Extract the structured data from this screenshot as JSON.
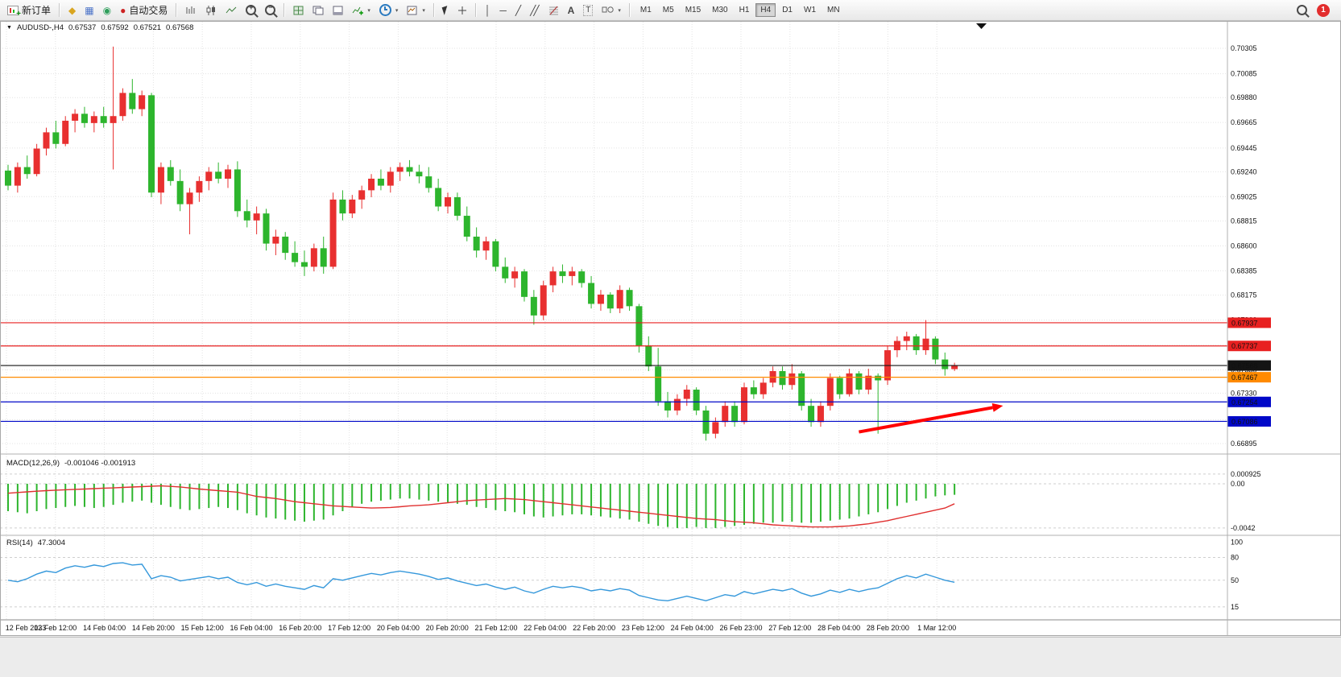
{
  "app": {
    "badge": "1"
  },
  "toolbar": {
    "new_order": "新订单",
    "autotrading": "自动交易",
    "timeframes": [
      "M1",
      "M5",
      "M15",
      "M30",
      "H1",
      "H4",
      "D1",
      "W1",
      "MN"
    ],
    "active_timeframe": "H4",
    "icons": [
      "new-order-icon",
      "symbols-icon",
      "market-watch-icon",
      "navigator-icon",
      "autotrading-icon",
      "bar-chart-icon",
      "candlestick-chart-icon",
      "line-chart-icon",
      "zoom-in-icon",
      "zoom-out-icon",
      "tile-windows-icon",
      "cascade-windows-icon",
      "arrange-windows-icon",
      "indicators-icon",
      "periods-icon",
      "templates-icon",
      "cursor-icon",
      "crosshair-icon",
      "vertical-line-icon",
      "horizontal-line-icon",
      "trendline-icon",
      "channel-icon",
      "fibonacci-icon",
      "text-icon",
      "label-icon",
      "shapes-icon",
      "search-icon",
      "notification-badge"
    ]
  },
  "chart": {
    "symbol_period": "AUDUSD-,H4",
    "open": "0.67537",
    "high": "0.67592",
    "low": "0.67521",
    "close": "0.67568",
    "macd_title": "MACD(12,26,9)",
    "macd_values": "-0.001046 -0.001913",
    "rsi_title": "RSI(14)",
    "rsi_value": "47.3004"
  },
  "chart_data": [
    {
      "type": "candlestick",
      "title": "AUDUSD-,H4",
      "note": "Chinese color convention: red bodies = bullish (up), green bodies = bearish (down)",
      "up_color": "#e83030",
      "down_color": "#2db52d",
      "ylim": [
        0.6686,
        0.7043
      ],
      "y_grid_labels": [
        "0.70305",
        "0.70085",
        "0.69880",
        "0.69665",
        "0.69445",
        "0.69240",
        "0.69025",
        "0.68815",
        "0.68600",
        "0.68385",
        "0.68175",
        "0.67960",
        "0.67745",
        "0.67530",
        "0.67330",
        "0.67100",
        "0.66895"
      ],
      "x_labels": [
        "12 Feb 2023",
        "13 Feb 12:00",
        "14 Feb 04:00",
        "14 Feb 20:00",
        "15 Feb 12:00",
        "16 Feb 04:00",
        "16 Feb 20:00",
        "17 Feb 12:00",
        "20 Feb 04:00",
        "20 Feb 20:00",
        "21 Feb 12:00",
        "22 Feb 04:00",
        "22 Feb 20:00",
        "23 Feb 12:00",
        "24 Feb 04:00",
        "26 Feb 23:00",
        "27 Feb 12:00",
        "28 Feb 04:00",
        "28 Feb 20:00",
        "1 Mar 12:00"
      ],
      "levels": [
        {
          "price": 0.67937,
          "label": "0.67937",
          "color": "#e82020",
          "style": "resistance"
        },
        {
          "price": 0.67737,
          "label": "0.67737",
          "color": "#e82020",
          "style": "resistance"
        },
        {
          "price": 0.67568,
          "label": "0.67568",
          "color": "#141414",
          "style": "current-price",
          "current_price": true
        },
        {
          "price": 0.67467,
          "label": "0.67467",
          "color": "#ff8a00",
          "style": "level"
        },
        {
          "price": 0.67254,
          "label": "0.67254",
          "color": "#0008c8",
          "style": "support"
        },
        {
          "price": 0.67086,
          "label": "0.67086",
          "color": "#0008c8",
          "style": "support"
        }
      ],
      "arrow_annotation": {
        "from_index": 89,
        "from_price": 0.66995,
        "to_index": 103,
        "to_price": 0.67205,
        "color": "#ff0000"
      },
      "candles_ohlc": [
        [
          0.6925,
          0.693,
          0.6908,
          0.6912
        ],
        [
          0.6912,
          0.6932,
          0.6906,
          0.6928
        ],
        [
          0.6928,
          0.6938,
          0.6918,
          0.6922
        ],
        [
          0.6922,
          0.6948,
          0.692,
          0.6944
        ],
        [
          0.6944,
          0.6962,
          0.6938,
          0.6958
        ],
        [
          0.6958,
          0.6968,
          0.6944,
          0.6948
        ],
        [
          0.6948,
          0.6972,
          0.6946,
          0.6968
        ],
        [
          0.6968,
          0.6978,
          0.6958,
          0.6974
        ],
        [
          0.6974,
          0.698,
          0.6962,
          0.6966
        ],
        [
          0.6966,
          0.6976,
          0.6958,
          0.6972
        ],
        [
          0.6972,
          0.698,
          0.6962,
          0.6966
        ],
        [
          0.6966,
          0.7032,
          0.6926,
          0.6972
        ],
        [
          0.6972,
          0.6996,
          0.6968,
          0.6992
        ],
        [
          0.6992,
          0.7004,
          0.6974,
          0.6978
        ],
        [
          0.6978,
          0.6994,
          0.6972,
          0.699
        ],
        [
          0.699,
          0.6992,
          0.6902,
          0.6906
        ],
        [
          0.6906,
          0.6932,
          0.6896,
          0.6928
        ],
        [
          0.6928,
          0.6934,
          0.6912,
          0.6916
        ],
        [
          0.6916,
          0.6926,
          0.689,
          0.6896
        ],
        [
          0.6896,
          0.691,
          0.687,
          0.6906
        ],
        [
          0.6906,
          0.692,
          0.6898,
          0.6916
        ],
        [
          0.6916,
          0.6928,
          0.6908,
          0.6924
        ],
        [
          0.6924,
          0.6932,
          0.6914,
          0.6918
        ],
        [
          0.6918,
          0.693,
          0.691,
          0.6926
        ],
        [
          0.6926,
          0.6933,
          0.6885,
          0.689
        ],
        [
          0.689,
          0.69,
          0.6876,
          0.6882
        ],
        [
          0.6882,
          0.6894,
          0.687,
          0.6888
        ],
        [
          0.6888,
          0.6892,
          0.6856,
          0.6862
        ],
        [
          0.6862,
          0.6874,
          0.6852,
          0.6868
        ],
        [
          0.6868,
          0.6872,
          0.6848,
          0.6854
        ],
        [
          0.6854,
          0.6864,
          0.6842,
          0.6846
        ],
        [
          0.6846,
          0.6856,
          0.6834,
          0.6842
        ],
        [
          0.6842,
          0.6862,
          0.6838,
          0.6858
        ],
        [
          0.6858,
          0.6868,
          0.6836,
          0.6842
        ],
        [
          0.6842,
          0.6906,
          0.684,
          0.69
        ],
        [
          0.69,
          0.6908,
          0.6882,
          0.6888
        ],
        [
          0.6888,
          0.6904,
          0.6884,
          0.69
        ],
        [
          0.69,
          0.6912,
          0.6892,
          0.6908
        ],
        [
          0.6908,
          0.6922,
          0.6902,
          0.6918
        ],
        [
          0.6918,
          0.6926,
          0.6908,
          0.6912
        ],
        [
          0.6912,
          0.6928,
          0.6906,
          0.6924
        ],
        [
          0.6924,
          0.6932,
          0.6916,
          0.6928
        ],
        [
          0.6928,
          0.6934,
          0.692,
          0.6924
        ],
        [
          0.6924,
          0.693,
          0.6914,
          0.692
        ],
        [
          0.692,
          0.6928,
          0.6906,
          0.691
        ],
        [
          0.691,
          0.6918,
          0.689,
          0.6894
        ],
        [
          0.6894,
          0.6906,
          0.6888,
          0.6902
        ],
        [
          0.6902,
          0.6906,
          0.6882,
          0.6886
        ],
        [
          0.6886,
          0.6894,
          0.6864,
          0.6868
        ],
        [
          0.6868,
          0.6876,
          0.685,
          0.6856
        ],
        [
          0.6856,
          0.6868,
          0.6848,
          0.6864
        ],
        [
          0.6864,
          0.6866,
          0.6838,
          0.6842
        ],
        [
          0.6842,
          0.685,
          0.6828,
          0.6832
        ],
        [
          0.6832,
          0.6842,
          0.6824,
          0.6838
        ],
        [
          0.6838,
          0.684,
          0.6812,
          0.6816
        ],
        [
          0.6816,
          0.6822,
          0.6792,
          0.68
        ],
        [
          0.68,
          0.683,
          0.6796,
          0.6826
        ],
        [
          0.6826,
          0.6842,
          0.682,
          0.6838
        ],
        [
          0.6838,
          0.6844,
          0.6828,
          0.6834
        ],
        [
          0.6834,
          0.6842,
          0.6826,
          0.6838
        ],
        [
          0.6838,
          0.684,
          0.6824,
          0.6828
        ],
        [
          0.6828,
          0.6834,
          0.6806,
          0.681
        ],
        [
          0.681,
          0.6822,
          0.6804,
          0.6818
        ],
        [
          0.6818,
          0.682,
          0.6802,
          0.6806
        ],
        [
          0.6806,
          0.6826,
          0.6802,
          0.6822
        ],
        [
          0.6822,
          0.6824,
          0.6804,
          0.6808
        ],
        [
          0.6808,
          0.681,
          0.6768,
          0.6774
        ],
        [
          0.6774,
          0.6782,
          0.6752,
          0.6756
        ],
        [
          0.6756,
          0.6772,
          0.6722,
          0.6726
        ],
        [
          0.6726,
          0.6734,
          0.6712,
          0.6718
        ],
        [
          0.6718,
          0.6732,
          0.6714,
          0.6728
        ],
        [
          0.6728,
          0.674,
          0.6722,
          0.6736
        ],
        [
          0.6736,
          0.6738,
          0.6714,
          0.6718
        ],
        [
          0.6718,
          0.6722,
          0.6692,
          0.6698
        ],
        [
          0.6698,
          0.6712,
          0.6694,
          0.6708
        ],
        [
          0.6708,
          0.6726,
          0.6704,
          0.6722
        ],
        [
          0.6722,
          0.6726,
          0.6704,
          0.6708
        ],
        [
          0.6708,
          0.6742,
          0.6706,
          0.6738
        ],
        [
          0.6738,
          0.6744,
          0.6728,
          0.6732
        ],
        [
          0.6732,
          0.6746,
          0.6728,
          0.6742
        ],
        [
          0.6742,
          0.6756,
          0.6738,
          0.6752
        ],
        [
          0.6752,
          0.6756,
          0.6736,
          0.674
        ],
        [
          0.674,
          0.6758,
          0.6736,
          0.675
        ],
        [
          0.675,
          0.6752,
          0.6718,
          0.6722
        ],
        [
          0.6722,
          0.6728,
          0.6704,
          0.6708
        ],
        [
          0.6708,
          0.6726,
          0.6704,
          0.6722
        ],
        [
          0.6722,
          0.675,
          0.6718,
          0.6746
        ],
        [
          0.6746,
          0.6748,
          0.6728,
          0.6732
        ],
        [
          0.6732,
          0.6754,
          0.673,
          0.675
        ],
        [
          0.675,
          0.6752,
          0.6732,
          0.6736
        ],
        [
          0.6736,
          0.6754,
          0.6732,
          0.6748
        ],
        [
          0.6748,
          0.675,
          0.6698,
          0.6744
        ],
        [
          0.6744,
          0.6774,
          0.674,
          0.677
        ],
        [
          0.677,
          0.6782,
          0.6764,
          0.6778
        ],
        [
          0.6778,
          0.6786,
          0.677,
          0.6782
        ],
        [
          0.6782,
          0.6784,
          0.6766,
          0.677
        ],
        [
          0.677,
          0.6796,
          0.6766,
          0.678
        ],
        [
          0.678,
          0.6782,
          0.6758,
          0.6762
        ],
        [
          0.6762,
          0.6768,
          0.6748,
          0.67537
        ],
        [
          0.67537,
          0.67592,
          0.67521,
          0.67568
        ]
      ]
    },
    {
      "type": "macd",
      "title": "MACD(12,26,9)",
      "main_value": -0.001046,
      "signal_value": -0.001913,
      "ylim": [
        -0.00474,
        0.00267
      ],
      "y_labels": [
        "0.000925",
        "0.00",
        "-0.0042"
      ],
      "histogram_color": "#2db52d",
      "signal_color": "#e03030",
      "histogram": [
        -0.0026,
        -0.0027,
        -0.0028,
        -0.0026,
        -0.0024,
        -0.0023,
        -0.0022,
        -0.0021,
        -0.0022,
        -0.0023,
        -0.0022,
        -0.002,
        -0.0018,
        -0.0017,
        -0.0016,
        -0.0018,
        -0.002,
        -0.0022,
        -0.0024,
        -0.0025,
        -0.0024,
        -0.0023,
        -0.0022,
        -0.0023,
        -0.0025,
        -0.0028,
        -0.003,
        -0.0032,
        -0.0033,
        -0.0034,
        -0.0035,
        -0.0036,
        -0.0035,
        -0.0034,
        -0.003,
        -0.0026,
        -0.0022,
        -0.0019,
        -0.0017,
        -0.0016,
        -0.0015,
        -0.0014,
        -0.0014,
        -0.0015,
        -0.0016,
        -0.0017,
        -0.0018,
        -0.0019,
        -0.002,
        -0.0022,
        -0.0023,
        -0.0025,
        -0.0026,
        -0.0027,
        -0.0029,
        -0.0031,
        -0.0032,
        -0.0031,
        -0.003,
        -0.0029,
        -0.0029,
        -0.003,
        -0.0031,
        -0.0032,
        -0.0033,
        -0.0034,
        -0.0036,
        -0.0038,
        -0.004,
        -0.0041,
        -0.0042,
        -0.0042,
        -0.0041,
        -0.0042,
        -0.0042,
        -0.0041,
        -0.004,
        -0.0039,
        -0.0038,
        -0.0037,
        -0.0037,
        -0.0036,
        -0.0036,
        -0.0037,
        -0.0037,
        -0.0036,
        -0.0035,
        -0.0034,
        -0.0033,
        -0.0031,
        -0.0029,
        -0.0027,
        -0.0024,
        -0.0021,
        -0.0018,
        -0.0016,
        -0.0014,
        -0.0012,
        -0.0011,
        -0.001046
      ],
      "signal": [
        -0.0009,
        -0.00083,
        -0.00077,
        -0.00071,
        -0.00065,
        -0.00061,
        -0.00057,
        -0.00053,
        -0.0005,
        -0.00046,
        -0.00042,
        -0.00039,
        -0.00035,
        -0.00031,
        -0.00027,
        -0.00023,
        -0.0002,
        -0.00025,
        -0.0003,
        -0.0004,
        -0.0005,
        -0.00058,
        -0.00065,
        -0.00072,
        -0.0008,
        -0.001,
        -0.0012,
        -0.0013,
        -0.0014,
        -0.00155,
        -0.0017,
        -0.0018,
        -0.0019,
        -0.002,
        -0.0021,
        -0.00215,
        -0.0022,
        -0.00225,
        -0.0023,
        -0.00228,
        -0.00225,
        -0.00218,
        -0.0021,
        -0.00205,
        -0.002,
        -0.0019,
        -0.0018,
        -0.0017,
        -0.0016,
        -0.00155,
        -0.0015,
        -0.00145,
        -0.0014,
        -0.00145,
        -0.0015,
        -0.0016,
        -0.0017,
        -0.0018,
        -0.0019,
        -0.002,
        -0.0021,
        -0.0022,
        -0.0023,
        -0.0024,
        -0.0025,
        -0.0026,
        -0.0027,
        -0.0028,
        -0.0029,
        -0.003,
        -0.0031,
        -0.0032,
        -0.0033,
        -0.00335,
        -0.0034,
        -0.0035,
        -0.0036,
        -0.00365,
        -0.0037,
        -0.0038,
        -0.0039,
        -0.00395,
        -0.004,
        -0.00405,
        -0.0041,
        -0.0041,
        -0.0041,
        -0.00405,
        -0.004,
        -0.0039,
        -0.0038,
        -0.00365,
        -0.0035,
        -0.0033,
        -0.0031,
        -0.0029,
        -0.0027,
        -0.0025,
        -0.0023,
        -0.0019
      ]
    },
    {
      "type": "line",
      "title": "RSI(14)",
      "value": 47.3004,
      "ylim": [
        0,
        108
      ],
      "levels": [
        100,
        80,
        50,
        15
      ],
      "line_color": "#3598db",
      "values": [
        50,
        48,
        52,
        58,
        62,
        60,
        66,
        69,
        67,
        70,
        68,
        72,
        73,
        70,
        71,
        52,
        56,
        54,
        49,
        51,
        53,
        55,
        52,
        54,
        47,
        44,
        47,
        42,
        45,
        42,
        40,
        38,
        43,
        40,
        52,
        50,
        53,
        56,
        59,
        57,
        60,
        62,
        60,
        58,
        55,
        51,
        53,
        49,
        46,
        43,
        45,
        41,
        38,
        41,
        36,
        33,
        38,
        42,
        40,
        42,
        40,
        36,
        38,
        36,
        39,
        37,
        30,
        27,
        24,
        23,
        26,
        29,
        26,
        23,
        27,
        31,
        29,
        35,
        32,
        35,
        38,
        36,
        39,
        33,
        29,
        32,
        37,
        34,
        38,
        35,
        38,
        40,
        46,
        52,
        56,
        53,
        58,
        54,
        50,
        47.3
      ]
    }
  ]
}
